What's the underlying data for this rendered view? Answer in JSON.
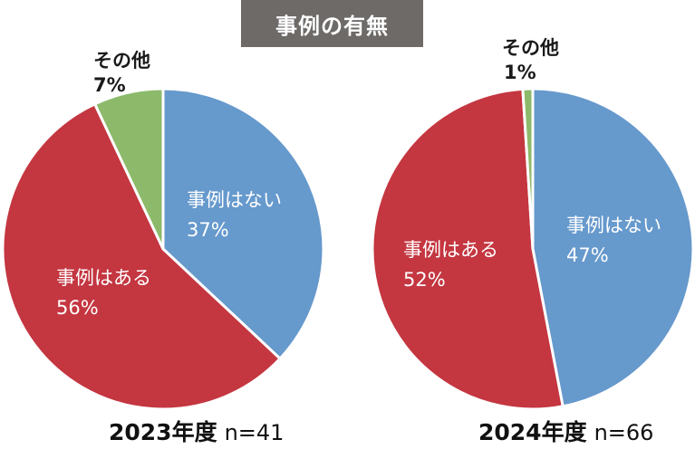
{
  "title": "事例の有無",
  "chart_data": [
    {
      "type": "pie",
      "year_label": "2023年度",
      "n_label": "n=41",
      "slices": [
        {
          "name": "事例はない",
          "pct": 37,
          "value_label": "37%",
          "color": "#6699cc"
        },
        {
          "name": "事例はある",
          "pct": 56,
          "value_label": "56%",
          "color": "#c43640"
        },
        {
          "name": "その他",
          "pct": 7,
          "value_label": "7%",
          "color": "#8cba6a"
        }
      ]
    },
    {
      "type": "pie",
      "year_label": "2024年度",
      "n_label": "n=66",
      "slices": [
        {
          "name": "事例はない",
          "pct": 47,
          "value_label": "47%",
          "color": "#6699cc"
        },
        {
          "name": "事例はある",
          "pct": 52,
          "value_label": "52%",
          "color": "#c43640"
        },
        {
          "name": "その他",
          "pct": 1,
          "value_label": "1%",
          "color": "#8cba6a"
        }
      ]
    }
  ]
}
